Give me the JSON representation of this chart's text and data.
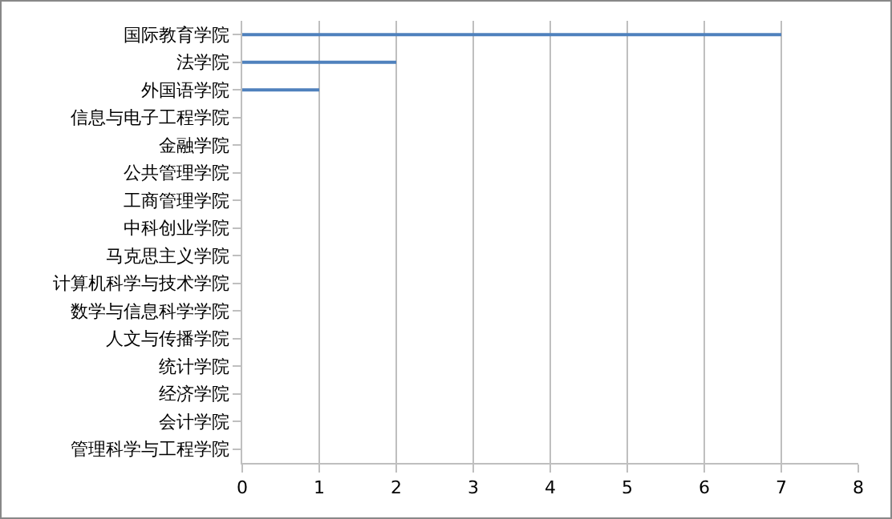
{
  "chart_data": {
    "type": "bar",
    "orientation": "horizontal",
    "categories": [
      "国际教育学院",
      "法学院",
      "外国语学院",
      "信息与电子工程学院",
      "金融学院",
      "公共管理学院",
      "工商管理学院",
      "中科创业学院",
      "马克思主义学院",
      "计算机科学与技术学院",
      "数学与信息科学学院",
      "人文与传播学院",
      "统计学院",
      "经济学院",
      "会计学院",
      "管理科学与工程学院"
    ],
    "values": [
      7,
      2,
      1,
      0,
      0,
      0,
      0,
      0,
      0,
      0,
      0,
      0,
      0,
      0,
      0,
      0
    ],
    "color": "#4f81bd",
    "xlim": [
      0,
      8
    ],
    "xticks": [
      0,
      1,
      2,
      3,
      4,
      5,
      6,
      7,
      8
    ],
    "grid": "x"
  }
}
